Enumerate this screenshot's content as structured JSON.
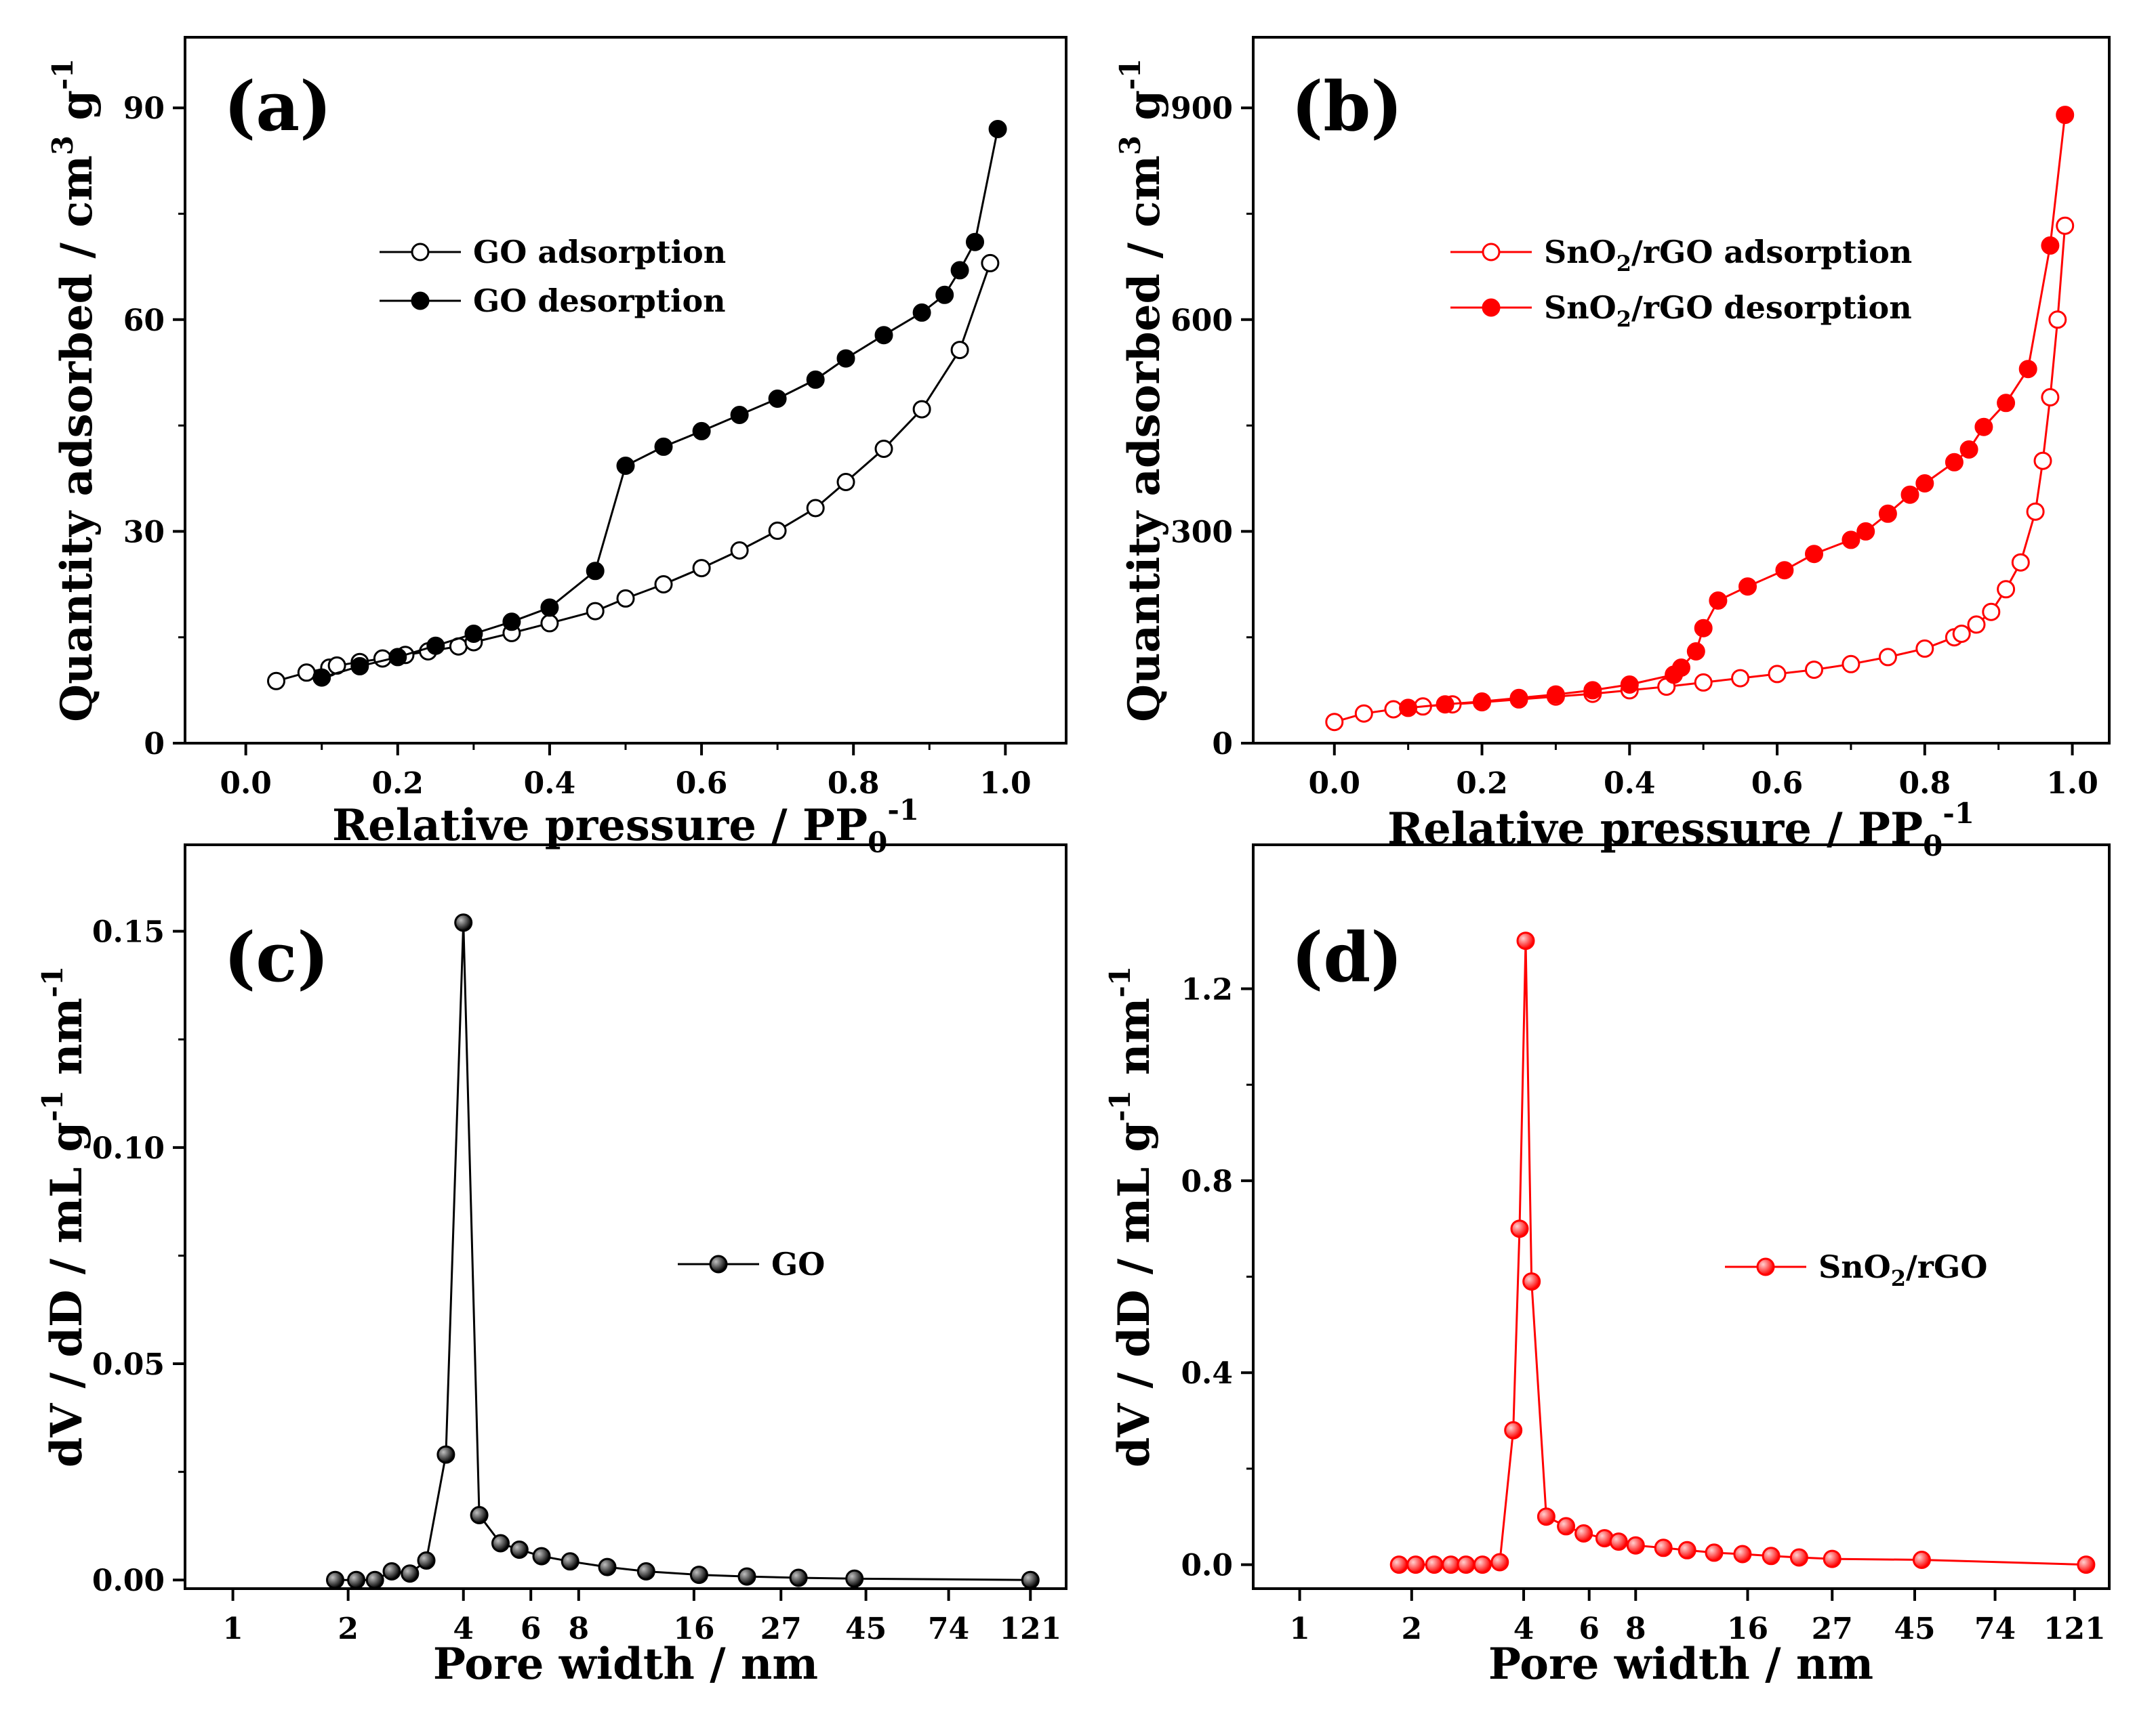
{
  "chart_data": [
    {
      "panel_label": "(a)",
      "type": "scatter",
      "xlabel_main": "Relative pressure / PP",
      "xlabel_sub": "0",
      "xlabel_sup": "-1",
      "ylabel_main": "Quantity adsorbed / cm",
      "ylabel_sup1": "3",
      "ylabel_mid": " g",
      "ylabel_sup2": "-1",
      "xlim": [
        -0.08,
        1.08
      ],
      "ylim": [
        0,
        100
      ],
      "xticks": [
        0.0,
        0.2,
        0.4,
        0.6,
        0.8,
        1.0
      ],
      "xtick_labels": [
        "0.0",
        "0.2",
        "0.4",
        "0.6",
        "0.8",
        "1.0"
      ],
      "yticks": [
        0,
        30,
        60,
        90
      ],
      "ytick_labels": [
        "0",
        "30",
        "60",
        "90"
      ],
      "legend_position": "upper-left",
      "series": [
        {
          "name": "GO adsorption",
          "color": "#000000",
          "marker": "open-circle",
          "x": [
            0.04,
            0.08,
            0.11,
            0.12,
            0.15,
            0.18,
            0.21,
            0.24,
            0.28,
            0.3,
            0.35,
            0.4,
            0.46,
            0.5,
            0.55,
            0.6,
            0.65,
            0.7,
            0.75,
            0.79,
            0.84,
            0.89,
            0.94,
            0.98
          ],
          "y": [
            8.8,
            10.0,
            10.7,
            11.0,
            11.5,
            12.0,
            12.5,
            13.0,
            13.7,
            14.3,
            15.6,
            17.0,
            18.7,
            20.5,
            22.5,
            24.8,
            27.3,
            30.1,
            33.3,
            37.0,
            41.7,
            47.3,
            55.7,
            68.0
          ]
        },
        {
          "name": "GO desorption",
          "color": "#000000",
          "marker": "filled-circle",
          "x": [
            0.99,
            0.96,
            0.94,
            0.92,
            0.89,
            0.84,
            0.79,
            0.75,
            0.7,
            0.65,
            0.6,
            0.55,
            0.5,
            0.46,
            0.4,
            0.35,
            0.3,
            0.25,
            0.2,
            0.15,
            0.1
          ],
          "y": [
            87.0,
            71.0,
            67.0,
            63.5,
            61.0,
            57.8,
            54.5,
            51.5,
            48.8,
            46.5,
            44.2,
            42.0,
            39.3,
            24.4,
            19.2,
            17.2,
            15.5,
            13.8,
            12.2,
            10.9,
            9.3
          ]
        }
      ]
    },
    {
      "panel_label": "(b)",
      "type": "scatter",
      "xlabel_main": "Relative pressure / PP",
      "xlabel_sub": "0",
      "xlabel_sup": "-1",
      "ylabel_main": "Quantity adsorbed / cm",
      "ylabel_sup1": "3",
      "ylabel_mid": " g",
      "ylabel_sup2": "-1",
      "xlim": [
        -0.11,
        1.05
      ],
      "ylim": [
        0,
        1000
      ],
      "xticks": [
        0.0,
        0.2,
        0.4,
        0.6,
        0.8,
        1.0
      ],
      "xtick_labels": [
        "0.0",
        "0.2",
        "0.4",
        "0.6",
        "0.8",
        "1.0"
      ],
      "yticks": [
        0,
        300,
        600,
        900
      ],
      "ytick_labels": [
        "0",
        "300",
        "600",
        "900"
      ],
      "legend_position": "upper-left",
      "series": [
        {
          "name_main": "SnO",
          "name_sub": "2",
          "name_rest": "/rGO adsorption",
          "color": "#ff0000",
          "marker": "open-circle",
          "x": [
            0.0,
            0.04,
            0.08,
            0.12,
            0.16,
            0.2,
            0.25,
            0.3,
            0.35,
            0.4,
            0.45,
            0.5,
            0.55,
            0.6,
            0.65,
            0.7,
            0.75,
            0.8,
            0.84,
            0.85,
            0.87,
            0.89,
            0.91,
            0.93,
            0.95,
            0.96,
            0.97,
            0.98,
            0.99
          ],
          "y": [
            30,
            42,
            48,
            52,
            55,
            58,
            62,
            66,
            70,
            75,
            80,
            86,
            92,
            98,
            104,
            112,
            122,
            134,
            150,
            155,
            168,
            186,
            218,
            256,
            328,
            400,
            490,
            600,
            733
          ]
        },
        {
          "name_main": "SnO",
          "name_sub": "2",
          "name_rest": "/rGO desorption",
          "color": "#ff0000",
          "marker": "filled-circle",
          "x": [
            0.99,
            0.97,
            0.94,
            0.91,
            0.88,
            0.86,
            0.84,
            0.8,
            0.78,
            0.75,
            0.72,
            0.7,
            0.65,
            0.61,
            0.56,
            0.52,
            0.5,
            0.49,
            0.47,
            0.46,
            0.4,
            0.35,
            0.3,
            0.25,
            0.2,
            0.15,
            0.1
          ],
          "y": [
            890,
            705,
            530,
            482,
            448,
            416,
            398,
            368,
            352,
            325,
            300,
            288,
            268,
            245,
            222,
            202,
            163,
            130,
            107,
            97,
            83,
            75,
            69,
            64,
            59,
            55,
            50
          ]
        }
      ]
    },
    {
      "panel_label": "(c)",
      "type": "line",
      "xlabel_main": "Pore width / nm",
      "ylabel_main": "dV / dD / mL g",
      "ylabel_sup1": "-1",
      "ylabel_mid": " nm",
      "ylabel_sup2": "-1",
      "x_scale": "log",
      "xlim": [
        0.75,
        150
      ],
      "ylim": [
        -0.002,
        0.17
      ],
      "xticks": [
        1,
        2,
        4,
        6,
        8,
        16,
        27,
        45,
        74,
        121
      ],
      "xtick_labels": [
        "1",
        "2",
        "4",
        "6",
        "8",
        "16",
        "27",
        "45",
        "74",
        "121"
      ],
      "yticks": [
        0.0,
        0.05,
        0.1,
        0.15
      ],
      "ytick_labels": [
        "0.00",
        "0.05",
        "0.10",
        "0.15"
      ],
      "legend_position": "center-right",
      "series": [
        {
          "name": "GO",
          "color": "#000000",
          "marker": "filled-ball",
          "x": [
            1.85,
            2.1,
            2.35,
            2.6,
            2.9,
            3.2,
            3.6,
            4.0,
            4.4,
            5.0,
            5.6,
            6.4,
            7.6,
            9.5,
            12.0,
            16.5,
            22.0,
            30.0,
            42.0,
            121.0
          ],
          "y": [
            0.0,
            0.0,
            0.0,
            0.002,
            0.0015,
            0.0045,
            0.029,
            0.152,
            0.015,
            0.0085,
            0.007,
            0.0055,
            0.0043,
            0.003,
            0.002,
            0.0012,
            0.0008,
            0.0005,
            0.0003,
            0.0
          ]
        }
      ]
    },
    {
      "panel_label": "(d)",
      "type": "line",
      "xlabel_main": "Pore width / nm",
      "ylabel_main": "dV / dD / mL g",
      "ylabel_sup1": "-1",
      "ylabel_mid": " nm",
      "ylabel_sup2": "-1",
      "x_scale": "log",
      "xlim": [
        0.75,
        150
      ],
      "ylim": [
        -0.05,
        1.5
      ],
      "xticks": [
        1,
        2,
        4,
        6,
        8,
        16,
        27,
        45,
        74,
        121
      ],
      "xtick_labels": [
        "1",
        "2",
        "4",
        "6",
        "8",
        "16",
        "27",
        "45",
        "74",
        "121"
      ],
      "yticks": [
        0.0,
        0.4,
        0.8,
        1.2
      ],
      "ytick_labels": [
        "0.0",
        "0.4",
        "0.8",
        "1.2"
      ],
      "legend_position": "center-right",
      "series": [
        {
          "name_main": "SnO",
          "name_sub": "2",
          "name_rest": "/rGO",
          "color": "#ff0000",
          "marker": "filled-ball",
          "x": [
            1.85,
            2.05,
            2.3,
            2.55,
            2.8,
            3.1,
            3.45,
            3.75,
            3.9,
            4.05,
            4.2,
            4.6,
            5.2,
            5.8,
            6.6,
            7.2,
            8.0,
            9.5,
            11.0,
            13.0,
            15.5,
            18.5,
            22.0,
            27.0,
            47.0,
            130.0
          ],
          "y": [
            0.0,
            0.0,
            0.0,
            0.0,
            0.0,
            0.0,
            0.005,
            0.28,
            0.7,
            1.3,
            0.59,
            0.1,
            0.08,
            0.065,
            0.055,
            0.048,
            0.04,
            0.035,
            0.03,
            0.025,
            0.022,
            0.018,
            0.015,
            0.012,
            0.01,
            0.0
          ]
        }
      ]
    }
  ]
}
